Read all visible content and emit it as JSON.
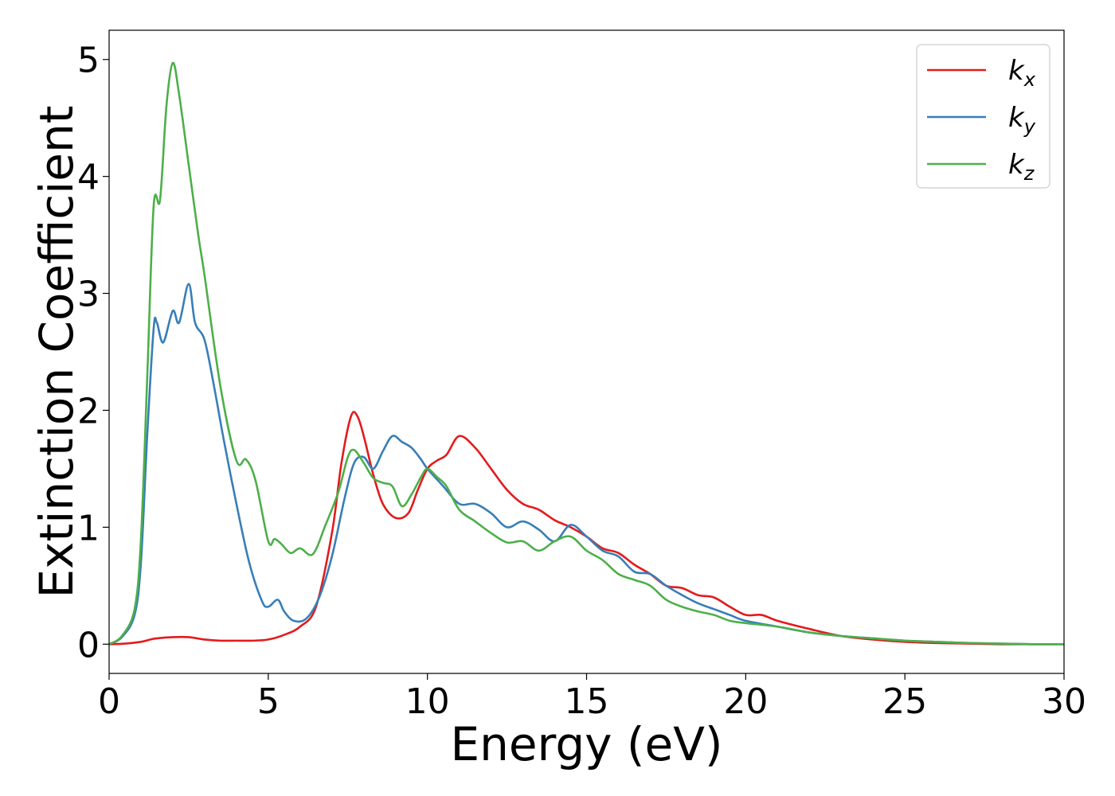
{
  "chart_data": {
    "type": "line",
    "title": "",
    "xlabel": "Energy (eV)",
    "ylabel": "Extinction Coefficient",
    "xlim": [
      0,
      30
    ],
    "ylim": [
      -0.25,
      5.25
    ],
    "xticks": [
      "0",
      "5",
      "10",
      "15",
      "20",
      "25",
      "30"
    ],
    "yticks": [
      "0",
      "1",
      "2",
      "3",
      "4",
      "5"
    ],
    "grid": false,
    "legend_position": "top-right",
    "colors": {
      "k_x": "#e41a1c",
      "k_y": "#377eb8",
      "k_z": "#4daf4a"
    },
    "legend": [
      {
        "base": "k",
        "sub": "x"
      },
      {
        "base": "k",
        "sub": "y"
      },
      {
        "base": "k",
        "sub": "z"
      }
    ],
    "series": [
      {
        "name": "k_x",
        "x": [
          0,
          0.5,
          1.0,
          1.3,
          1.5,
          2.0,
          2.5,
          3.0,
          3.5,
          4.0,
          4.5,
          5.0,
          5.5,
          6.0,
          6.5,
          7.0,
          7.3,
          7.6,
          7.8,
          8.0,
          8.3,
          8.6,
          9.0,
          9.4,
          9.7,
          10.0,
          10.3,
          10.6,
          11.0,
          11.5,
          12.0,
          12.5,
          13.0,
          13.5,
          14.0,
          14.5,
          15.0,
          15.5,
          16.0,
          16.5,
          17.0,
          17.5,
          18.0,
          18.5,
          19.0,
          19.5,
          20.0,
          20.5,
          21.0,
          22.0,
          23.0,
          24.0,
          25.0,
          26.0,
          27.0,
          28.0,
          29.0,
          30.0
        ],
        "y": [
          0.0,
          0.005,
          0.02,
          0.04,
          0.05,
          0.06,
          0.06,
          0.04,
          0.03,
          0.03,
          0.03,
          0.04,
          0.08,
          0.15,
          0.32,
          0.95,
          1.55,
          1.95,
          1.95,
          1.78,
          1.45,
          1.2,
          1.08,
          1.12,
          1.32,
          1.5,
          1.57,
          1.62,
          1.78,
          1.68,
          1.5,
          1.32,
          1.2,
          1.15,
          1.06,
          1.0,
          0.92,
          0.82,
          0.78,
          0.68,
          0.6,
          0.5,
          0.48,
          0.42,
          0.4,
          0.32,
          0.25,
          0.25,
          0.2,
          0.13,
          0.07,
          0.04,
          0.02,
          0.01,
          0.005,
          0.0,
          0.0,
          0.0
        ]
      },
      {
        "name": "k_y",
        "x": [
          0,
          0.4,
          0.8,
          1.0,
          1.2,
          1.4,
          1.5,
          1.7,
          2.0,
          2.2,
          2.5,
          2.7,
          3.0,
          3.3,
          3.6,
          4.0,
          4.4,
          4.8,
          5.0,
          5.3,
          5.5,
          5.8,
          6.2,
          6.6,
          7.0,
          7.4,
          7.7,
          8.0,
          8.3,
          8.6,
          8.9,
          9.2,
          9.5,
          9.8,
          10.0,
          10.5,
          11.0,
          11.5,
          12.0,
          12.5,
          13.0,
          13.5,
          14.0,
          14.5,
          15.0,
          15.5,
          16.0,
          16.5,
          17.0,
          17.5,
          18.0,
          18.5,
          19.0,
          19.5,
          20.0,
          21.0,
          22.0,
          23.0,
          24.0,
          25.0,
          26.0,
          27.0,
          28.0,
          29.0,
          30.0
        ],
        "y": [
          0.0,
          0.06,
          0.25,
          0.7,
          1.8,
          2.7,
          2.75,
          2.58,
          2.85,
          2.75,
          3.08,
          2.75,
          2.6,
          2.2,
          1.75,
          1.2,
          0.7,
          0.37,
          0.32,
          0.38,
          0.28,
          0.2,
          0.22,
          0.4,
          0.75,
          1.25,
          1.55,
          1.6,
          1.5,
          1.65,
          1.78,
          1.73,
          1.68,
          1.58,
          1.5,
          1.35,
          1.2,
          1.2,
          1.12,
          1.0,
          1.05,
          0.98,
          0.88,
          1.02,
          0.92,
          0.8,
          0.75,
          0.62,
          0.6,
          0.5,
          0.42,
          0.35,
          0.3,
          0.25,
          0.2,
          0.15,
          0.1,
          0.07,
          0.05,
          0.03,
          0.02,
          0.01,
          0.005,
          0.0,
          0.0
        ]
      },
      {
        "name": "k_z",
        "x": [
          0,
          0.4,
          0.8,
          1.0,
          1.2,
          1.4,
          1.6,
          1.8,
          2.0,
          2.2,
          2.5,
          2.8,
          3.0,
          3.5,
          4.0,
          4.3,
          4.6,
          5.0,
          5.2,
          5.4,
          5.7,
          6.0,
          6.4,
          6.8,
          7.2,
          7.5,
          7.7,
          8.0,
          8.3,
          8.6,
          8.9,
          9.2,
          9.5,
          9.8,
          10.0,
          10.3,
          10.6,
          11.0,
          11.5,
          12.0,
          12.5,
          13.0,
          13.5,
          14.0,
          14.5,
          15.0,
          15.5,
          16.0,
          16.5,
          17.0,
          17.5,
          18.0,
          18.5,
          19.0,
          19.5,
          20.0,
          21.0,
          22.0,
          23.0,
          24.0,
          25.0,
          26.0,
          27.0,
          28.0,
          29.0,
          30.0
        ],
        "y": [
          0.0,
          0.07,
          0.3,
          0.9,
          2.3,
          3.75,
          3.8,
          4.6,
          4.97,
          4.7,
          4.1,
          3.5,
          3.15,
          2.2,
          1.57,
          1.58,
          1.4,
          0.88,
          0.9,
          0.86,
          0.78,
          0.82,
          0.77,
          1.02,
          1.3,
          1.6,
          1.66,
          1.55,
          1.42,
          1.38,
          1.35,
          1.18,
          1.28,
          1.43,
          1.5,
          1.43,
          1.35,
          1.15,
          1.05,
          0.95,
          0.87,
          0.88,
          0.8,
          0.88,
          0.92,
          0.8,
          0.72,
          0.6,
          0.55,
          0.5,
          0.38,
          0.32,
          0.28,
          0.25,
          0.2,
          0.18,
          0.15,
          0.1,
          0.07,
          0.05,
          0.03,
          0.02,
          0.01,
          0.005,
          0.0,
          0.0
        ]
      }
    ]
  }
}
